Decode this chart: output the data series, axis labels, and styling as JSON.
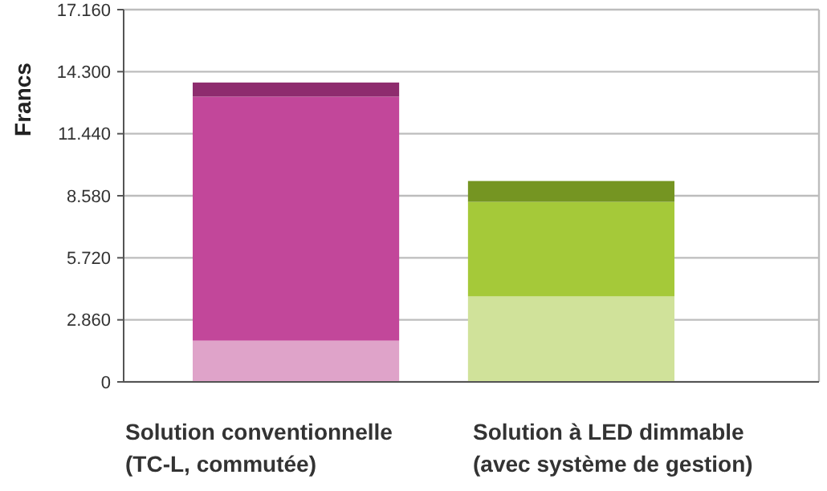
{
  "chart_data": {
    "type": "bar",
    "stacked": true,
    "ylabel": "Francs",
    "categories": [
      "Solution conventionnelle (TC-L, commutée)",
      "Solution à LED dimmable (avec système de gestion)"
    ],
    "series": [
      {
        "colors": [
          "#dfa3c9",
          "#d0e29a"
        ],
        "values": [
          1900,
          3940
        ]
      },
      {
        "colors": [
          "#c2479a",
          "#a5c939"
        ],
        "values": [
          11250,
          4360
        ]
      },
      {
        "colors": [
          "#8e2c6e",
          "#759522"
        ],
        "values": [
          650,
          960
        ]
      }
    ],
    "ylim": [
      0,
      17160
    ],
    "yticks": [
      0,
      {
        "value": 2860,
        "label": "2.860"
      },
      {
        "value": 5720,
        "label": "5.720"
      },
      {
        "value": 8580,
        "label": "8.580"
      },
      {
        "value": 11440,
        "label": "11.440"
      },
      {
        "value": 14300,
        "label": "14.300"
      },
      {
        "value": 17160,
        "label": "17.160"
      }
    ],
    "grid": "y"
  }
}
